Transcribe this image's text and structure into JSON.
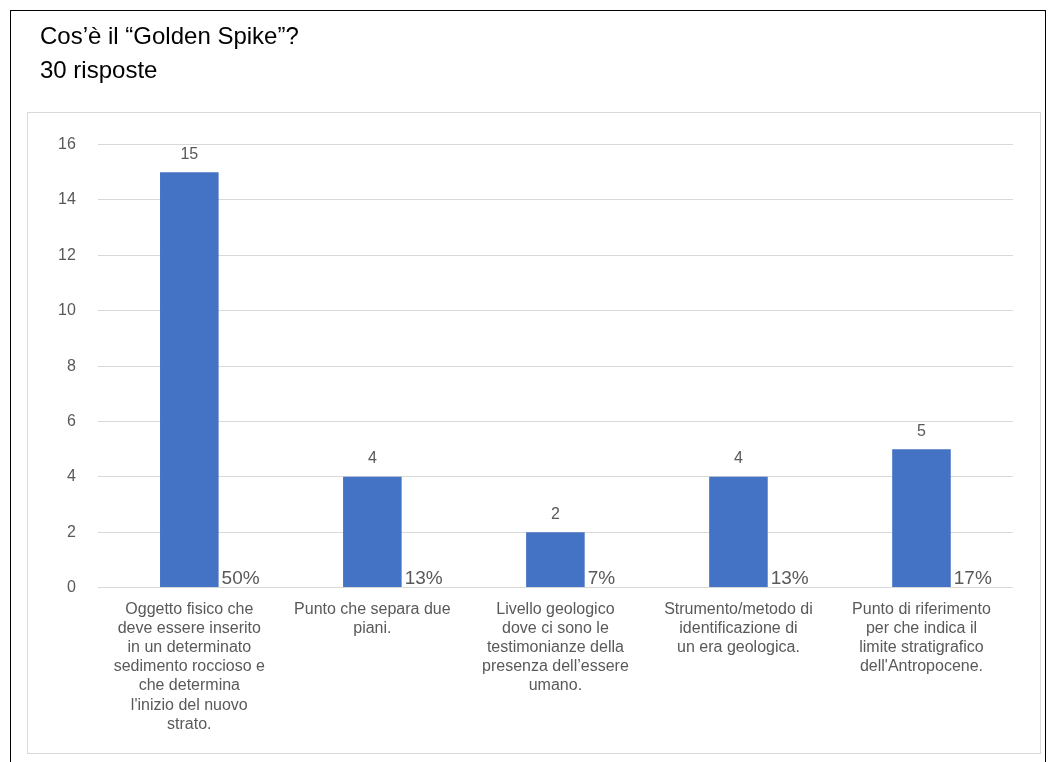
{
  "chart_data": {
    "type": "bar",
    "title": "Cos’è il “Golden Spike”?",
    "subtitle": "30 risposte",
    "categories": [
      "Oggetto fisico che deve essere inserito in un determinato sedimento roccioso e che determina l'inizio del nuovo strato.",
      "Punto che separa due piani.",
      "Livello geologico dove ci sono le testimonianze della presenza dell’essere umano.",
      "Strumento/metodo di identificazione di un era geologica.",
      "Punto di riferimento per che indica il limite stratigrafico dell'Antropocene."
    ],
    "values": [
      15,
      4,
      2,
      4,
      5
    ],
    "color": "#4472c4",
    "ylim": [
      0,
      16
    ],
    "yticks": [
      0,
      2,
      4,
      6,
      8,
      10,
      12,
      14,
      16
    ],
    "grid": "y",
    "legend": false,
    "data_labels": true,
    "annotations": [
      {
        "text": "50%",
        "x": "Oggetto fisico che deve essere inserito in un determinato sedimento roccioso e che determina l'inizio del nuovo strato.",
        "y": 0
      },
      {
        "text": "13%",
        "x": "Punto che separa due piani.",
        "y": 0
      },
      {
        "text": "7%",
        "x": "Livello geologico dove ci sono le testimonianze della presenza dell’essere umano.",
        "y": 0
      },
      {
        "text": "13%",
        "x": "Strumento/metodo di identificazione di un era geologica.",
        "y": 0
      },
      {
        "text": "17%",
        "x": "Punto di riferimento per che indica il limite stratigrafico dell'Antropocene.",
        "y": 0
      }
    ]
  }
}
